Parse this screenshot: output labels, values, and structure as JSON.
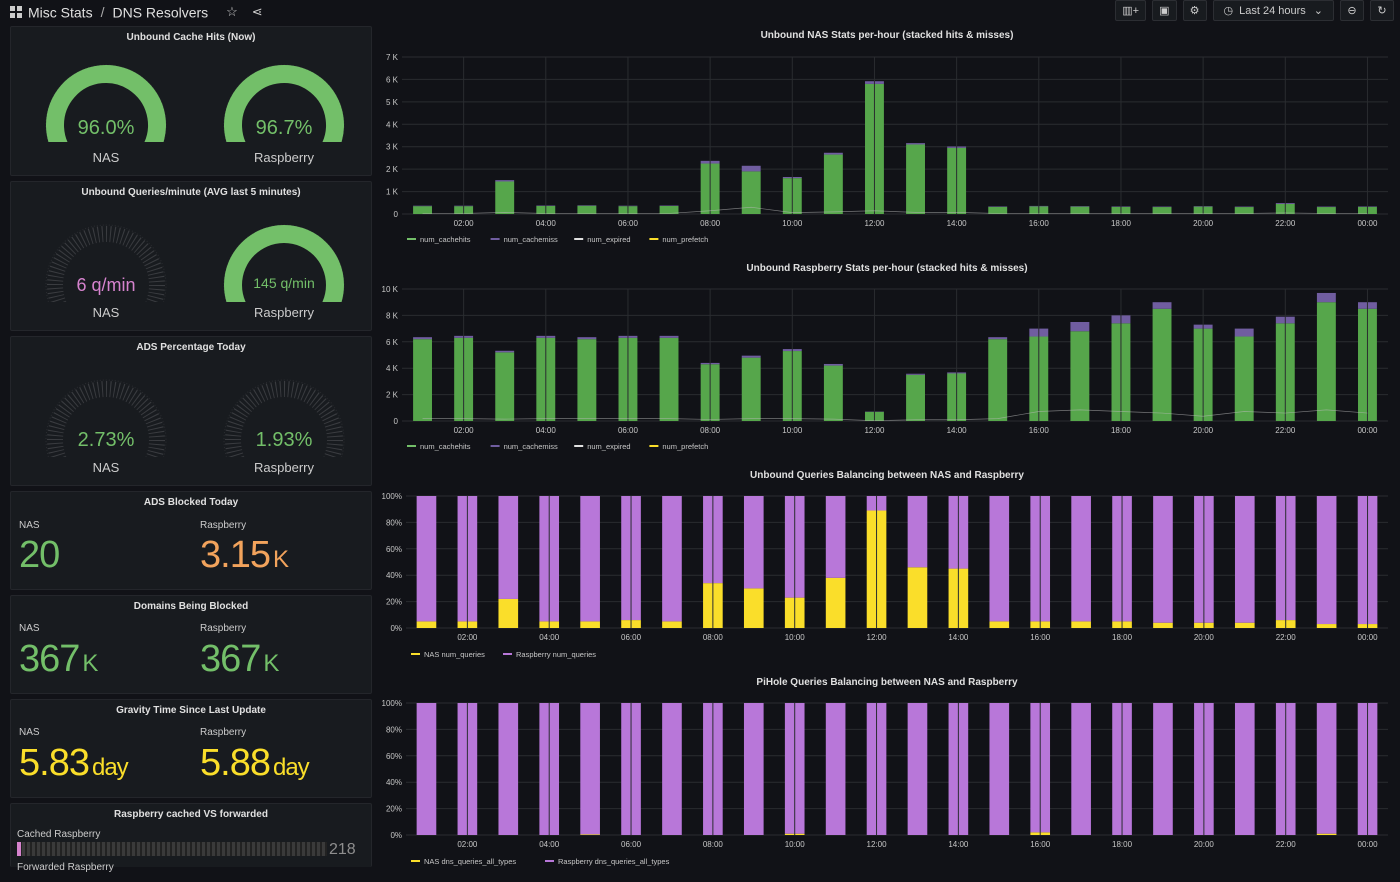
{
  "breadcrumb": {
    "folder": "Misc Stats",
    "separator": "/",
    "dashboard": "DNS Resolvers"
  },
  "toolbar": {
    "time_range": "Last 24 hours"
  },
  "colors": {
    "green": "#73bf69",
    "dark_green": "#56a64b",
    "pink": "#d683ce",
    "yellow": "#fade2a",
    "orange": "#f2a35c",
    "purple": "#b877d9"
  },
  "panels": {
    "cache_hits": {
      "title": "Unbound Cache Hits (Now)",
      "gauges": [
        {
          "label": "NAS",
          "value": "96.0%",
          "percent": 96.0
        },
        {
          "label": "Raspberry",
          "value": "96.7%",
          "percent": 96.7
        }
      ]
    },
    "qpm": {
      "title": "Unbound Queries/minute (AVG last 5 minutes)",
      "gauges": [
        {
          "label": "NAS",
          "value": "6 q/min",
          "percent": 2
        },
        {
          "label": "Raspberry",
          "value": "145 q/min",
          "percent": 100
        }
      ]
    },
    "ads_pct": {
      "title": "ADS Percentage Today",
      "gauges": [
        {
          "label": "NAS",
          "value": "2.73%",
          "percent": 2.73
        },
        {
          "label": "Raspberry",
          "value": "1.93%",
          "percent": 1.93
        }
      ]
    },
    "ads_blocked": {
      "title": "ADS Blocked Today",
      "stats": [
        {
          "label": "NAS",
          "value": "20",
          "unit": ""
        },
        {
          "label": "Raspberry",
          "value": "3.15",
          "unit": "K"
        }
      ]
    },
    "domains": {
      "title": "Domains Being Blocked",
      "stats": [
        {
          "label": "NAS",
          "value": "367",
          "unit": "K"
        },
        {
          "label": "Raspberry",
          "value": "367",
          "unit": "K"
        }
      ]
    },
    "gravity": {
      "title": "Gravity Time Since Last Update",
      "stats": [
        {
          "label": "NAS",
          "value": "5.83",
          "unit": "day"
        },
        {
          "label": "Raspberry",
          "value": "5.88",
          "unit": "day"
        }
      ]
    },
    "cached_fwd": {
      "title": "Raspberry cached VS forwarded",
      "rows": [
        {
          "label": "Cached Raspberry",
          "value": "218"
        },
        {
          "label": "Forwarded Raspberry",
          "value": ""
        }
      ]
    }
  },
  "chart_data": [
    {
      "type": "bar",
      "title": "Unbound NAS Stats per-hour (stacked hits & misses)",
      "x": [
        "01:00",
        "02:00",
        "03:00",
        "04:00",
        "05:00",
        "06:00",
        "07:00",
        "08:00",
        "09:00",
        "10:00",
        "11:00",
        "12:00",
        "13:00",
        "14:00",
        "15:00",
        "16:00",
        "17:00",
        "18:00",
        "19:00",
        "20:00",
        "21:00",
        "22:00",
        "23:00",
        "00:00"
      ],
      "x_ticks": [
        "02:00",
        "04:00",
        "06:00",
        "08:00",
        "10:00",
        "12:00",
        "14:00",
        "16:00",
        "18:00",
        "20:00",
        "22:00",
        "00:00"
      ],
      "y_ticks": [
        "0",
        "1 K",
        "2 K",
        "3 K",
        "4 K",
        "5 K",
        "6 K",
        "7 K"
      ],
      "ylim": [
        0,
        7000
      ],
      "stacked": true,
      "series": [
        {
          "name": "num_cachehits",
          "values": [
            350,
            350,
            1450,
            360,
            370,
            350,
            360,
            2250,
            1900,
            1600,
            2650,
            5800,
            3100,
            2950,
            320,
            340,
            330,
            320,
            310,
            330,
            310,
            450,
            310,
            320
          ]
        },
        {
          "name": "num_cachemiss",
          "values": [
            20,
            20,
            60,
            20,
            20,
            20,
            20,
            120,
            250,
            50,
            80,
            120,
            60,
            60,
            20,
            20,
            20,
            20,
            20,
            20,
            20,
            40,
            20,
            20
          ]
        }
      ],
      "legend": [
        "num_cachehits",
        "num_cachemiss",
        "num_expired",
        "num_prefetch"
      ]
    },
    {
      "type": "bar",
      "title": "Unbound Raspberry Stats per-hour (stacked hits & misses)",
      "x": [
        "01:00",
        "02:00",
        "03:00",
        "04:00",
        "05:00",
        "06:00",
        "07:00",
        "08:00",
        "09:00",
        "10:00",
        "11:00",
        "12:00",
        "13:00",
        "14:00",
        "15:00",
        "16:00",
        "17:00",
        "18:00",
        "19:00",
        "20:00",
        "21:00",
        "22:00",
        "23:00",
        "00:00"
      ],
      "x_ticks": [
        "02:00",
        "04:00",
        "06:00",
        "08:00",
        "10:00",
        "12:00",
        "14:00",
        "16:00",
        "18:00",
        "20:00",
        "22:00",
        "00:00"
      ],
      "y_ticks": [
        "0",
        "2 K",
        "4 K",
        "6 K",
        "8 K",
        "10 K"
      ],
      "ylim": [
        0,
        10000
      ],
      "stacked": true,
      "series": [
        {
          "name": "num_cachehits",
          "values": [
            6200,
            6300,
            5200,
            6300,
            6200,
            6300,
            6300,
            4300,
            4800,
            5300,
            4200,
            700,
            3500,
            3600,
            6200,
            6400,
            6800,
            7400,
            8500,
            7000,
            6400,
            7400,
            9000,
            8500
          ]
        },
        {
          "name": "num_cachemiss",
          "values": [
            150,
            150,
            120,
            150,
            150,
            150,
            150,
            100,
            150,
            150,
            120,
            20,
            80,
            80,
            150,
            600,
            700,
            600,
            500,
            300,
            600,
            500,
            700,
            500
          ]
        }
      ],
      "legend": [
        "num_cachehits",
        "num_cachemiss",
        "num_expired",
        "num_prefetch"
      ]
    },
    {
      "type": "bar",
      "title": "Unbound Queries Balancing between NAS and Raspberry",
      "x": [
        "01:00",
        "02:00",
        "03:00",
        "04:00",
        "05:00",
        "06:00",
        "07:00",
        "08:00",
        "09:00",
        "10:00",
        "11:00",
        "12:00",
        "13:00",
        "14:00",
        "15:00",
        "16:00",
        "17:00",
        "18:00",
        "19:00",
        "20:00",
        "21:00",
        "22:00",
        "23:00",
        "00:00"
      ],
      "x_ticks": [
        "02:00",
        "04:00",
        "06:00",
        "08:00",
        "10:00",
        "12:00",
        "14:00",
        "16:00",
        "18:00",
        "20:00",
        "22:00",
        "00:00"
      ],
      "y_ticks": [
        "0%",
        "20%",
        "40%",
        "60%",
        "80%",
        "100%"
      ],
      "ylim": [
        0,
        100
      ],
      "stacked": true,
      "series": [
        {
          "name": "NAS num_queries",
          "values": [
            5,
            5,
            22,
            5,
            5,
            6,
            5,
            34,
            30,
            23,
            38,
            89,
            46,
            45,
            5,
            5,
            5,
            5,
            4,
            4,
            4,
            6,
            3,
            3
          ]
        },
        {
          "name": "Raspberry num_queries",
          "values": [
            95,
            95,
            78,
            95,
            95,
            94,
            95,
            66,
            70,
            77,
            62,
            11,
            54,
            55,
            95,
            95,
            95,
            95,
            96,
            96,
            96,
            94,
            97,
            97
          ]
        }
      ],
      "legend": [
        "NAS num_queries",
        "Raspberry num_queries"
      ]
    },
    {
      "type": "bar",
      "title": "PiHole Queries Balancing between NAS and Raspberry",
      "x": [
        "01:00",
        "02:00",
        "03:00",
        "04:00",
        "05:00",
        "06:00",
        "07:00",
        "08:00",
        "09:00",
        "10:00",
        "11:00",
        "12:00",
        "13:00",
        "14:00",
        "15:00",
        "16:00",
        "17:00",
        "18:00",
        "19:00",
        "20:00",
        "21:00",
        "22:00",
        "23:00",
        "00:00"
      ],
      "x_ticks": [
        "02:00",
        "04:00",
        "06:00",
        "08:00",
        "10:00",
        "12:00",
        "14:00",
        "16:00",
        "18:00",
        "20:00",
        "22:00",
        "00:00"
      ],
      "y_ticks": [
        "0%",
        "20%",
        "40%",
        "60%",
        "80%",
        "100%"
      ],
      "ylim": [
        0,
        100
      ],
      "stacked": true,
      "series": [
        {
          "name": "NAS dns_queries_all_types",
          "values": [
            0,
            0,
            0,
            0,
            0.5,
            0,
            0,
            0,
            0,
            1,
            0,
            0,
            0,
            0,
            0,
            2,
            0,
            0,
            0,
            0,
            0,
            0,
            1,
            0
          ]
        },
        {
          "name": "Raspberry dns_queries_all_types",
          "values": [
            100,
            100,
            100,
            100,
            99.5,
            100,
            100,
            100,
            100,
            99,
            100,
            100,
            100,
            100,
            100,
            98,
            100,
            100,
            100,
            100,
            100,
            100,
            99,
            100
          ]
        }
      ],
      "legend": [
        "NAS dns_queries_all_types",
        "Raspberry dns_queries_all_types"
      ]
    }
  ]
}
